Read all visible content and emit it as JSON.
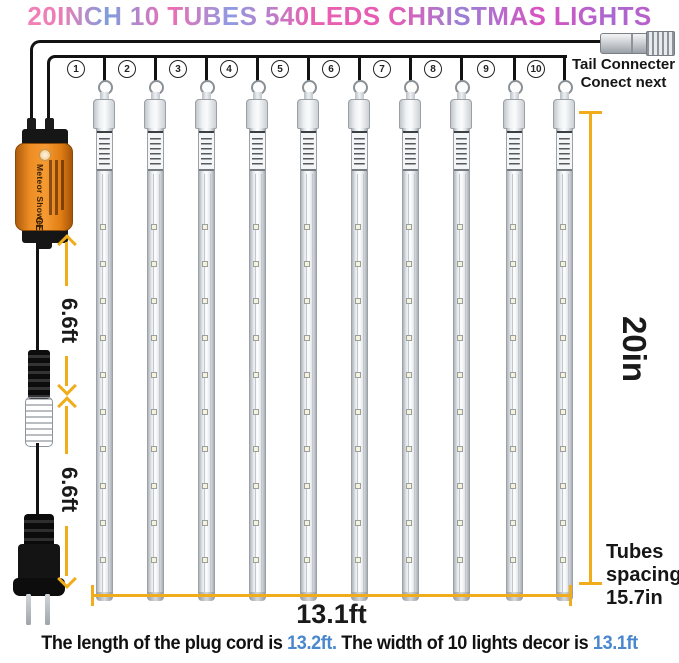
{
  "title": "20INCH 10 TUBES 540LEDS CHRISTMAS LIGHTS",
  "tail_connector": {
    "label_line1": "Tail Connecter",
    "label_line2": "Conect next"
  },
  "tubes": {
    "count": 10,
    "numbers": [
      "1",
      "2",
      "3",
      "4",
      "5",
      "6",
      "7",
      "8",
      "9",
      "10"
    ],
    "leds_per_tube_visible": 10
  },
  "adapter": {
    "brand": "Meteor Shower",
    "certification": "CE"
  },
  "measurements": {
    "upper_cord": "6.6ft",
    "lower_cord": "6.6ft",
    "tube_length": "20in",
    "total_width": "13.1ft",
    "spacing": [
      "Tubes",
      "spacing",
      "15.7in"
    ]
  },
  "footer": {
    "text_1": "The length of the plug cord is ",
    "value_1": "13.2ft.",
    "text_2": " The width of 10 lights decor is ",
    "value_2": "13.1ft"
  },
  "colors": {
    "measure_yellow": "#F1AC1B",
    "value_blue": "#4A87CD",
    "adapter_orange": "#EE8C23",
    "title_pink": "#EE71B2",
    "title_blue": "#7E9EDE",
    "title_purple": "#A968D2"
  }
}
